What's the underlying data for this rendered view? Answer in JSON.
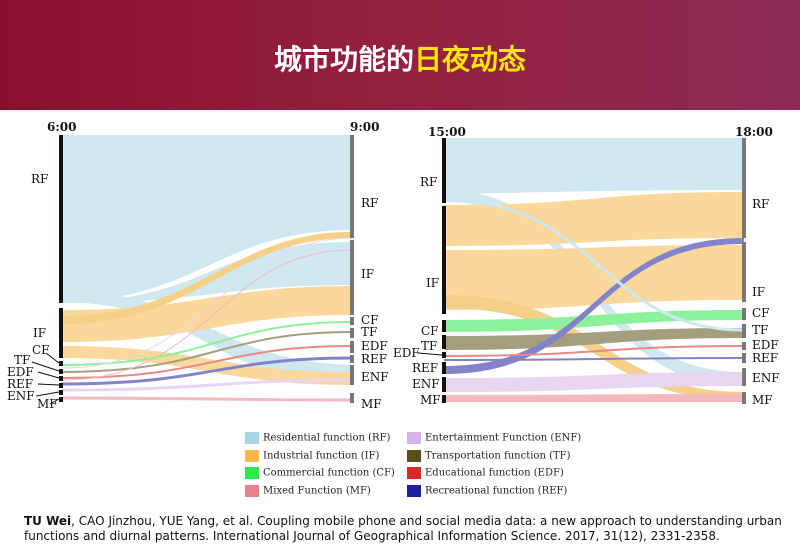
{
  "header": {
    "title_prefix": "城市功能的",
    "title_highlight": "日夜动态"
  },
  "diagram_left": {
    "time_from": "6:00",
    "time_to": "9:00",
    "left_labels": [
      "RF",
      "IF",
      "CF",
      "TF",
      "EDF",
      "REF",
      "ENF",
      "MF"
    ],
    "right_labels": [
      "RF",
      "IF",
      "CF",
      "TF",
      "EDF",
      "REF",
      "ENF",
      "MF"
    ]
  },
  "diagram_right": {
    "time_from": "15:00",
    "time_to": "18:00",
    "left_labels": [
      "RF",
      "IF",
      "CF",
      "TF",
      "EDF",
      "REF",
      "ENF",
      "MF"
    ],
    "right_labels": [
      "RF",
      "IF",
      "CF",
      "TF",
      "EDF",
      "REF",
      "ENF",
      "MF"
    ]
  },
  "legend": [
    {
      "label": "Residential function (RF)",
      "color": "#a9d6e5"
    },
    {
      "label": "Industrial function (IF)",
      "color": "#f7b84a"
    },
    {
      "label": "Commercial function (CF)",
      "color": "#2ee84a"
    },
    {
      "label": "Mixed Function (MF)",
      "color": "#ec7f8f"
    },
    {
      "label": "Entertainment Function (ENF)",
      "color": "#d6b3e6"
    },
    {
      "label": "Transportation function (TF)",
      "color": "#5a4f18"
    },
    {
      "label": "Educational function (EDF)",
      "color": "#d62a2a"
    },
    {
      "label": "Recreational function (REF)",
      "color": "#1d1fa0"
    }
  ],
  "citation": {
    "authors_bold": "TU Wei",
    "text": ", CAO Jinzhou, YUE Yang, et al. Coupling mobile phone and social media data: a new approach to understanding urban functions and diurnal patterns. International Journal of Geographical Information Science. 2017, 31(12), 2331-2358."
  }
}
